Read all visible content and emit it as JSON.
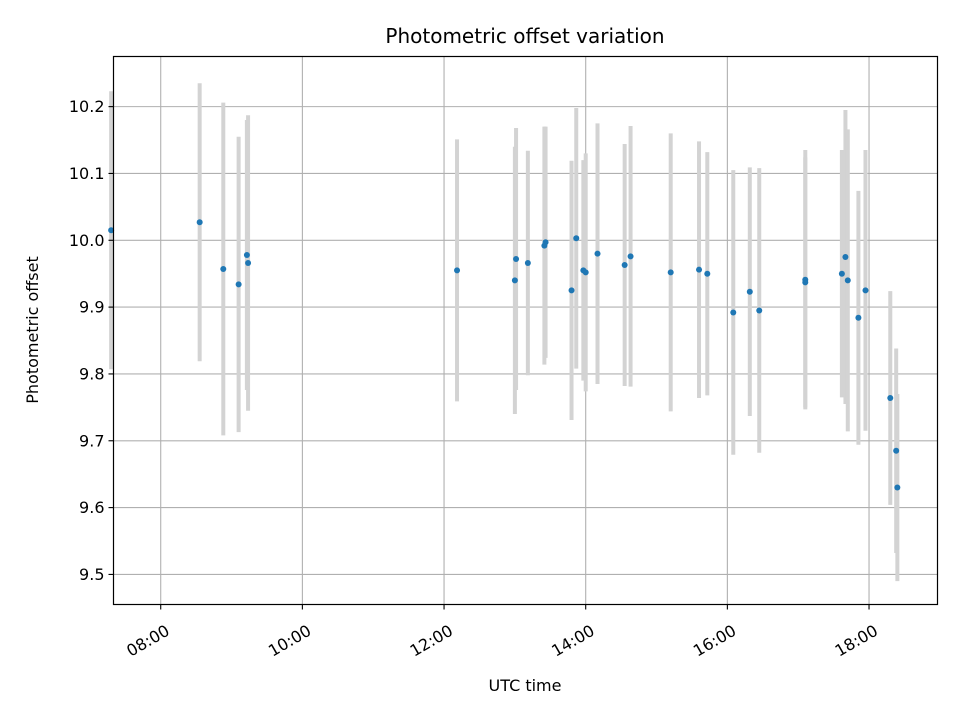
{
  "chart_data": {
    "type": "scatter",
    "title": "Photometric offset variation",
    "xlabel": "UTC time",
    "ylabel": "Photometric offset",
    "xlim": [
      "07:20",
      "18:58"
    ],
    "ylim": [
      9.455,
      10.275
    ],
    "x_ticks": [
      "08:00",
      "10:00",
      "12:00",
      "14:00",
      "16:00",
      "18:00"
    ],
    "y_ticks": [
      9.5,
      9.6,
      9.7,
      9.8,
      9.9,
      10.0,
      10.1,
      10.2
    ],
    "y_tick_labels": [
      "9.5",
      "9.6",
      "9.7",
      "9.8",
      "9.9",
      "10.0",
      "10.1",
      "10.2"
    ],
    "grid": true,
    "colors": {
      "point": "#1f77b4",
      "errorbar": "#d3d3d3",
      "grid": "#b0b0b0"
    },
    "points": [
      {
        "x": "07:18",
        "y": 10.015,
        "yerr": 0.208
      },
      {
        "x": "08:33",
        "y": 10.027,
        "yerr": 0.208
      },
      {
        "x": "08:53",
        "y": 9.957,
        "yerr": 0.249
      },
      {
        "x": "09:06",
        "y": 9.934,
        "yerr": 0.221
      },
      {
        "x": "09:13",
        "y": 9.978,
        "yerr": 0.202
      },
      {
        "x": "09:14",
        "y": 9.966,
        "yerr": 0.221
      },
      {
        "x": "12:11",
        "y": 9.955,
        "yerr": 0.196
      },
      {
        "x": "13:00",
        "y": 9.94,
        "yerr": 0.2
      },
      {
        "x": "13:01",
        "y": 9.972,
        "yerr": 0.196
      },
      {
        "x": "13:11",
        "y": 9.966,
        "yerr": 0.168
      },
      {
        "x": "13:25",
        "y": 9.992,
        "yerr": 0.178
      },
      {
        "x": "13:26",
        "y": 9.997,
        "yerr": 0.173
      },
      {
        "x": "13:48",
        "y": 9.925,
        "yerr": 0.194
      },
      {
        "x": "13:52",
        "y": 10.003,
        "yerr": 0.195
      },
      {
        "x": "13:58",
        "y": 9.955,
        "yerr": 0.165
      },
      {
        "x": "14:00",
        "y": 9.952,
        "yerr": 0.178
      },
      {
        "x": "14:10",
        "y": 9.98,
        "yerr": 0.195
      },
      {
        "x": "14:33",
        "y": 9.963,
        "yerr": 0.181
      },
      {
        "x": "14:38",
        "y": 9.976,
        "yerr": 0.195
      },
      {
        "x": "15:12",
        "y": 9.952,
        "yerr": 0.208
      },
      {
        "x": "15:36",
        "y": 9.956,
        "yerr": 0.192
      },
      {
        "x": "15:43",
        "y": 9.95,
        "yerr": 0.182
      },
      {
        "x": "16:05",
        "y": 9.892,
        "yerr": 0.213
      },
      {
        "x": "16:19",
        "y": 9.923,
        "yerr": 0.186
      },
      {
        "x": "16:27",
        "y": 9.895,
        "yerr": 0.213
      },
      {
        "x": "17:06",
        "y": 9.941,
        "yerr": 0.194
      },
      {
        "x": "17:06",
        "y": 9.937,
        "yerr": 0.187
      },
      {
        "x": "17:37",
        "y": 9.95,
        "yerr": 0.185
      },
      {
        "x": "17:40",
        "y": 9.975,
        "yerr": 0.22
      },
      {
        "x": "17:42",
        "y": 9.94,
        "yerr": 0.226
      },
      {
        "x": "17:51",
        "y": 9.884,
        "yerr": 0.19
      },
      {
        "x": "17:57",
        "y": 9.925,
        "yerr": 0.21
      },
      {
        "x": "18:18",
        "y": 9.764,
        "yerr": 0.16
      },
      {
        "x": "18:23",
        "y": 9.685,
        "yerr": 0.153
      },
      {
        "x": "18:24",
        "y": 9.63,
        "yerr": 0.14
      }
    ]
  }
}
